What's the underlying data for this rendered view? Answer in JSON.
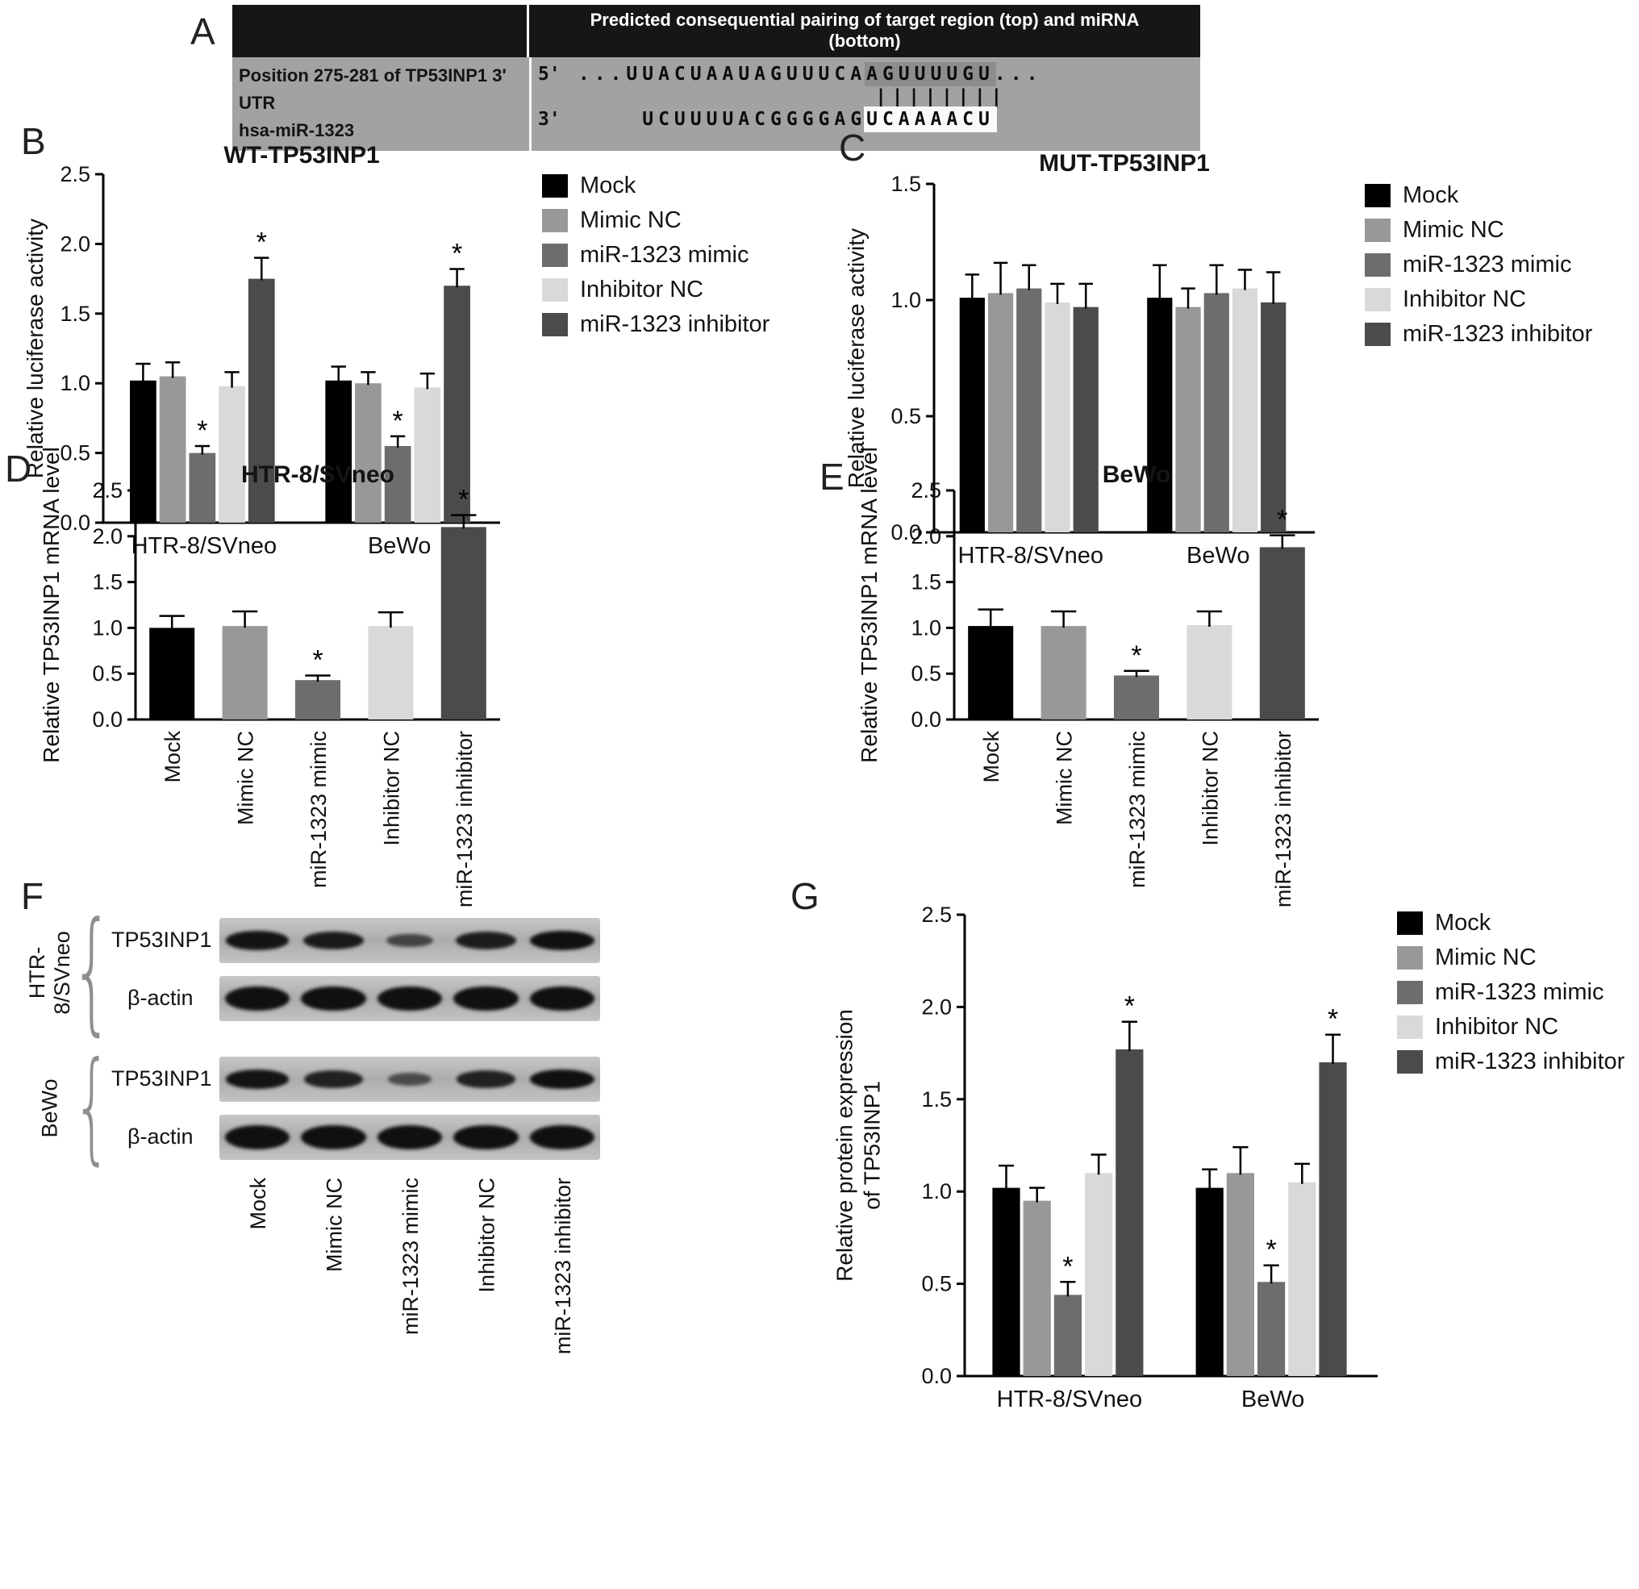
{
  "sig_marker": "*",
  "legend": {
    "entries": [
      {
        "label": "Mock",
        "color": "#000000"
      },
      {
        "label": "Mimic NC",
        "color": "#989898"
      },
      {
        "label": "miR-1323 mimic",
        "color": "#6d6d6d"
      },
      {
        "label": "Inhibitor NC",
        "color": "#d9d9d9"
      },
      {
        "label": "miR-1323 inhibitor",
        "color": "#4b4b4b"
      }
    ]
  },
  "panels": {
    "A": {
      "label": "A",
      "table_header": "Predicted consequential pairing of target region (top) and miRNA (bottom)",
      "rows": [
        {
          "name": "Position 275-281 of TP53INP1 3' UTR",
          "prime": "5'",
          "pre": "...UUACUAAUAGUUUCA",
          "match": "AGUUUUGU",
          "post": "..."
        },
        {
          "name": "hsa-miR-1323",
          "prime": "3'",
          "pre": "UCUUUUACGGGGAG",
          "match": "UCAAAACU",
          "post": ""
        }
      ],
      "pairing_bars": "||||||||"
    },
    "B": {
      "label": "B"
    },
    "C": {
      "label": "C"
    },
    "D": {
      "label": "D"
    },
    "E": {
      "label": "E"
    },
    "F": {
      "label": "F",
      "brace_glyph": "{",
      "cell_lines": [
        {
          "name_lines": [
            "HTR-",
            "8/SVneo"
          ]
        },
        {
          "name_lines": [
            "BeWo"
          ]
        }
      ],
      "blot_row_labels": [
        "TP53INP1",
        "β-actin"
      ],
      "lane_labels": [
        "Mock",
        "Mimic NC",
        "miR-1323 mimic",
        "Inhibitor NC",
        "miR-1323 inhibitor"
      ],
      "band_intensities": {
        "htr_tp53inp1": [
          0.95,
          0.88,
          0.4,
          0.85,
          1.0
        ],
        "htr_bactin": [
          1,
          1,
          1,
          1,
          1
        ],
        "bewo_tp53inp1": [
          0.95,
          0.8,
          0.32,
          0.8,
          1.0
        ],
        "bewo_bactin": [
          1,
          1,
          1,
          1,
          1
        ]
      }
    },
    "G": {
      "label": "G"
    }
  },
  "chart_data": [
    {
      "panel": "B",
      "type": "bar",
      "title": "WT-TP53INP1",
      "ylabel": "Relative luciferase activity",
      "ylim": [
        0,
        2.5
      ],
      "yticks": [
        0,
        0.5,
        1,
        1.5,
        2,
        2.5
      ],
      "groups": [
        "HTR-8/SVneo",
        "BeWo"
      ],
      "series": [
        {
          "name": "Mock",
          "values": [
            1.02,
            1.02
          ],
          "errors": [
            0.12,
            0.1
          ],
          "sig": [
            false,
            false
          ]
        },
        {
          "name": "Mimic NC",
          "values": [
            1.05,
            1.0
          ],
          "errors": [
            0.1,
            0.08
          ],
          "sig": [
            false,
            false
          ]
        },
        {
          "name": "miR-1323 mimic",
          "values": [
            0.5,
            0.55
          ],
          "errors": [
            0.05,
            0.07
          ],
          "sig": [
            true,
            true
          ]
        },
        {
          "name": "Inhibitor NC",
          "values": [
            0.98,
            0.97
          ],
          "errors": [
            0.1,
            0.1
          ],
          "sig": [
            false,
            false
          ]
        },
        {
          "name": "miR-1323 inhibitor",
          "values": [
            1.75,
            1.7
          ],
          "errors": [
            0.15,
            0.12
          ],
          "sig": [
            true,
            true
          ]
        }
      ]
    },
    {
      "panel": "C",
      "type": "bar",
      "title": "MUT-TP53INP1",
      "ylabel": "Relative luciferase activity",
      "ylim": [
        0,
        1.5
      ],
      "yticks": [
        0,
        0.5,
        1,
        1.5
      ],
      "groups": [
        "HTR-8/SVneo",
        "BeWo"
      ],
      "series": [
        {
          "name": "Mock",
          "values": [
            1.01,
            1.01
          ],
          "errors": [
            0.1,
            0.14
          ],
          "sig": [
            false,
            false
          ]
        },
        {
          "name": "Mimic NC",
          "values": [
            1.03,
            0.97
          ],
          "errors": [
            0.13,
            0.08
          ],
          "sig": [
            false,
            false
          ]
        },
        {
          "name": "miR-1323 mimic",
          "values": [
            1.05,
            1.03
          ],
          "errors": [
            0.1,
            0.12
          ],
          "sig": [
            false,
            false
          ]
        },
        {
          "name": "Inhibitor NC",
          "values": [
            0.99,
            1.05
          ],
          "errors": [
            0.08,
            0.08
          ],
          "sig": [
            false,
            false
          ]
        },
        {
          "name": "miR-1323 inhibitor",
          "values": [
            0.97,
            0.99
          ],
          "errors": [
            0.1,
            0.13
          ],
          "sig": [
            false,
            false
          ]
        }
      ]
    },
    {
      "panel": "D",
      "type": "bar",
      "title": "HTR-8/SVneo",
      "ylabel": "Relative TP53INP1 mRNA level",
      "ylim": [
        0,
        2.5
      ],
      "yticks": [
        0,
        0.5,
        1,
        1.5,
        2,
        2.5
      ],
      "categories": [
        "Mock",
        "Mimic NC",
        "miR-1323 mimic",
        "Inhibitor NC",
        "miR-1323 inhibitor"
      ],
      "values": [
        1.0,
        1.02,
        0.43,
        1.02,
        2.1
      ],
      "errors": [
        0.13,
        0.16,
        0.05,
        0.15,
        0.13
      ],
      "sig": [
        false,
        false,
        true,
        false,
        true
      ]
    },
    {
      "panel": "E",
      "type": "bar",
      "title": "BeWo",
      "ylabel": "Relative TP53INP1 mRNA level",
      "ylim": [
        0,
        2.5
      ],
      "yticks": [
        0,
        0.5,
        1,
        1.5,
        2,
        2.5
      ],
      "categories": [
        "Mock",
        "Mimic NC",
        "miR-1323 mimic",
        "Inhibitor NC",
        "miR-1323 inhibitor"
      ],
      "values": [
        1.02,
        1.02,
        0.48,
        1.03,
        1.88
      ],
      "errors": [
        0.18,
        0.16,
        0.05,
        0.15,
        0.13
      ],
      "sig": [
        false,
        false,
        true,
        false,
        true
      ]
    },
    {
      "panel": "G",
      "type": "bar",
      "title": "",
      "ylabel_lines": [
        "Relative protein expression",
        "of TP53INP1"
      ],
      "ylim": [
        0,
        2.5
      ],
      "yticks": [
        0,
        0.5,
        1,
        1.5,
        2,
        2.5
      ],
      "groups": [
        "HTR-8/SVneo",
        "BeWo"
      ],
      "series": [
        {
          "name": "Mock",
          "values": [
            1.02,
            1.02
          ],
          "errors": [
            0.12,
            0.1
          ],
          "sig": [
            false,
            false
          ]
        },
        {
          "name": "Mimic NC",
          "values": [
            0.95,
            1.1
          ],
          "errors": [
            0.07,
            0.14
          ],
          "sig": [
            false,
            false
          ]
        },
        {
          "name": "miR-1323 mimic",
          "values": [
            0.44,
            0.51
          ],
          "errors": [
            0.07,
            0.09
          ],
          "sig": [
            true,
            true
          ]
        },
        {
          "name": "Inhibitor NC",
          "values": [
            1.1,
            1.05
          ],
          "errors": [
            0.1,
            0.1
          ],
          "sig": [
            false,
            false
          ]
        },
        {
          "name": "miR-1323 inhibitor",
          "values": [
            1.77,
            1.7
          ],
          "errors": [
            0.15,
            0.15
          ],
          "sig": [
            true,
            true
          ]
        }
      ]
    }
  ]
}
